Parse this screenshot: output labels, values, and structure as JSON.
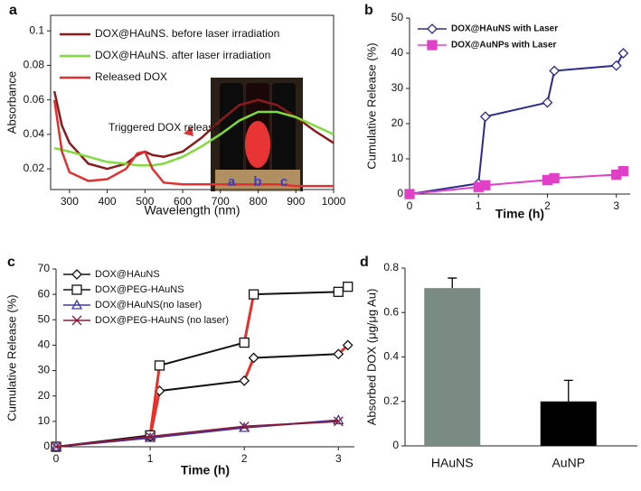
{
  "chart_data": [
    {
      "type": "line",
      "panel": "a",
      "xlabel": "Wavelength (nm)",
      "ylabel": "Absorbance",
      "xlim": [
        250,
        1000
      ],
      "ylim": [
        0.008,
        0.109
      ],
      "xticks": [
        300,
        400,
        500,
        600,
        700,
        800,
        900,
        1000
      ],
      "yticks": [
        0.02,
        0.04,
        0.06,
        0.08,
        0.1
      ],
      "annotation": "Triggered DOX release",
      "inset_labels": [
        "a",
        "b",
        "c"
      ],
      "series": [
        {
          "name": "DOX@HAuNS. before laser irradiation",
          "color": "#8b1a1a",
          "x": [
            260,
            280,
            300,
            350,
            400,
            450,
            480,
            500,
            520,
            550,
            600,
            650,
            700,
            750,
            800,
            850,
            900,
            950,
            1000
          ],
          "values": [
            0.065,
            0.045,
            0.035,
            0.023,
            0.02,
            0.023,
            0.028,
            0.03,
            0.028,
            0.027,
            0.03,
            0.038,
            0.048,
            0.057,
            0.06,
            0.057,
            0.05,
            0.042,
            0.035
          ]
        },
        {
          "name": "DOX@HAuNS. after laser irradiation",
          "color": "#7fdc3a",
          "x": [
            260,
            280,
            300,
            350,
            400,
            450,
            480,
            500,
            520,
            550,
            600,
            650,
            700,
            750,
            800,
            850,
            900,
            950,
            1000
          ],
          "values": [
            0.032,
            0.031,
            0.03,
            0.027,
            0.024,
            0.023,
            0.022,
            0.022,
            0.022,
            0.023,
            0.027,
            0.033,
            0.04,
            0.048,
            0.053,
            0.053,
            0.05,
            0.045,
            0.04
          ]
        },
        {
          "name": "Released DOX",
          "color": "#e03030",
          "x": [
            260,
            280,
            300,
            350,
            400,
            450,
            480,
            500,
            520,
            550,
            600,
            650,
            700,
            750,
            800,
            850,
            900,
            950,
            1000
          ],
          "values": [
            0.06,
            0.03,
            0.018,
            0.013,
            0.014,
            0.02,
            0.029,
            0.03,
            0.02,
            0.012,
            0.011,
            0.011,
            0.011,
            0.011,
            0.011,
            0.011,
            0.01,
            0.01,
            0.01
          ]
        }
      ]
    },
    {
      "type": "line",
      "panel": "b",
      "xlabel": "Time (h)",
      "ylabel": "Cumulative Release (%)",
      "xlim": [
        0,
        3.2
      ],
      "ylim": [
        0,
        50
      ],
      "xticks": [
        0,
        1,
        2,
        3
      ],
      "yticks": [
        0,
        10,
        20,
        30,
        40,
        50
      ],
      "series": [
        {
          "name": "DOX@HAuNS with Laser",
          "color": "#2b2b8f",
          "marker": "diamond",
          "marker_fill": "#ffffff",
          "x": [
            0,
            1,
            1.1,
            2,
            2.1,
            3,
            3.1
          ],
          "values": [
            0,
            3,
            22,
            26,
            35,
            36.5,
            40
          ]
        },
        {
          "name": "DOX@AuNPs with Laser",
          "color": "#e040c8",
          "marker": "square",
          "marker_fill": "#e040c8",
          "x": [
            0,
            1,
            1.1,
            2,
            2.1,
            3,
            3.1
          ],
          "values": [
            0,
            2,
            2.5,
            4,
            4.5,
            5.5,
            6.5
          ]
        }
      ]
    },
    {
      "type": "line",
      "panel": "c",
      "xlabel": "Time (h)",
      "ylabel": "Cumulative Release (%)",
      "xlim": [
        0,
        3.17
      ],
      "ylim": [
        0,
        70
      ],
      "xticks": [
        0,
        1,
        2,
        3
      ],
      "yticks": [
        0,
        10,
        20,
        30,
        40,
        50,
        60,
        70
      ],
      "jump_color": "#e8302a",
      "series": [
        {
          "name": "DOX@HAuNS",
          "color": "#111111",
          "marker": "diamond",
          "marker_fill": "#ffffff",
          "x": [
            0,
            1,
            1.1,
            2,
            2.1,
            3,
            3.1
          ],
          "values": [
            0,
            4,
            22,
            26,
            35,
            36.5,
            40
          ]
        },
        {
          "name": "DOX@PEG-HAuNS",
          "color": "#111111",
          "marker": "square",
          "marker_fill": "#ffffff",
          "x": [
            0,
            1,
            1.1,
            2,
            2.1,
            3,
            3.1
          ],
          "values": [
            0,
            4.5,
            32,
            41,
            60,
            61,
            63
          ]
        },
        {
          "name": "DOX@HAuNS(no laser)",
          "color": "#3a3ab0",
          "marker": "triangle",
          "marker_fill": "none",
          "x": [
            0,
            1,
            2,
            3
          ],
          "values": [
            0,
            3.5,
            7.5,
            10.5
          ]
        },
        {
          "name": "DOX@PEG-HAuNS (no laser)",
          "color": "#8b1a3a",
          "marker": "x",
          "marker_fill": "none",
          "x": [
            0,
            1,
            2,
            3
          ],
          "values": [
            0,
            4,
            8,
            10
          ]
        }
      ]
    },
    {
      "type": "bar",
      "panel": "d",
      "ylabel": "Absorbed DOX (μg/μg Au)",
      "categories": [
        "HAuNS",
        "AuNP"
      ],
      "values": [
        0.71,
        0.2
      ],
      "errors": [
        0.045,
        0.095
      ],
      "colors": [
        "#7a8b84",
        "#000000"
      ],
      "ylim": [
        0,
        0.8
      ],
      "yticks": [
        0,
        0.2,
        0.4,
        0.6,
        0.8
      ]
    }
  ]
}
